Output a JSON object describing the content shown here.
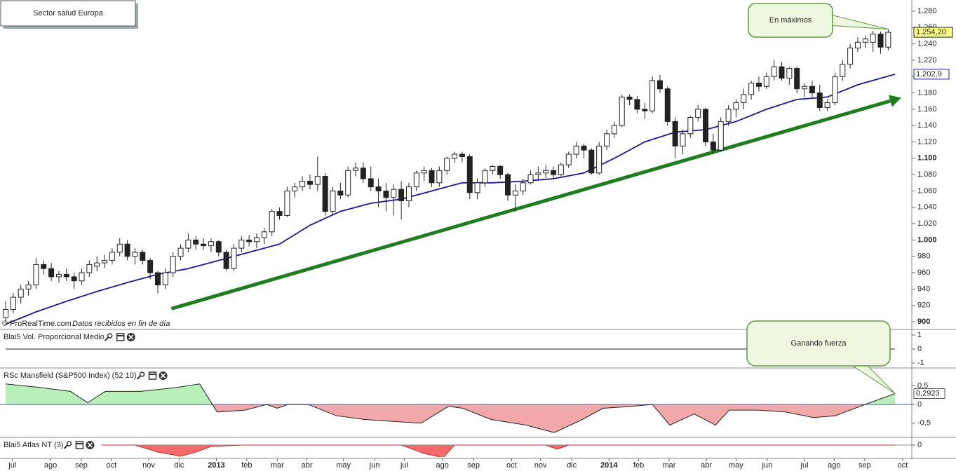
{
  "chart_data": [
    {
      "type": "candlestick",
      "title": "Sector salud Europa",
      "xlim": [
        -0.74,
        119.1
      ],
      "ylim": [
        892.3,
        1293.7
      ],
      "yticks": [
        900,
        920,
        940,
        960,
        980,
        {
          "value": 1000,
          "label": "1.000"
        },
        {
          "value": 1020,
          "label": "1.020"
        },
        {
          "value": 1040,
          "label": "1.040"
        },
        {
          "value": 1060,
          "label": "1.060"
        },
        {
          "value": 1080,
          "label": "1.080"
        },
        {
          "value": 1100,
          "label": "1.100"
        },
        {
          "value": 1120,
          "label": "1.120"
        },
        {
          "value": 1140,
          "label": "1.140"
        },
        {
          "value": 1160,
          "label": "1.160"
        },
        {
          "value": 1180,
          "label": "1.180"
        },
        {
          "value": 1200,
          "label": "1.200"
        },
        {
          "value": 1220,
          "label": "1.220"
        },
        {
          "value": 1240,
          "label": "1.240"
        },
        {
          "value": 1260,
          "label": "1.260"
        },
        {
          "value": 1280,
          "label": "1.280"
        }
      ],
      "candle_colors": {
        "up": "#ffffff",
        "down": "#222222"
      },
      "candles": [
        [
          905,
          925,
          900,
          915
        ],
        [
          915,
          935,
          910,
          930
        ],
        [
          930,
          945,
          922,
          940
        ],
        [
          940,
          950,
          932,
          945
        ],
        [
          945,
          978,
          940,
          970
        ],
        [
          970,
          975,
          958,
          965
        ],
        [
          965,
          972,
          950,
          955
        ],
        [
          955,
          962,
          948,
          958
        ],
        [
          958,
          965,
          950,
          955
        ],
        [
          955,
          960,
          940,
          950
        ],
        [
          950,
          965,
          945,
          960
        ],
        [
          960,
          975,
          955,
          970
        ],
        [
          968,
          980,
          962,
          972
        ],
        [
          972,
          982,
          966,
          975
        ],
        [
          975,
          990,
          970,
          985
        ],
        [
          985,
          1002,
          980,
          995
        ],
        [
          995,
          1000,
          975,
          980
        ],
        [
          980,
          990,
          970,
          985
        ],
        [
          985,
          988,
          970,
          975
        ],
        [
          975,
          978,
          952,
          960
        ],
        [
          960,
          962,
          935,
          945
        ],
        [
          945,
          965,
          940,
          960
        ],
        [
          960,
          985,
          955,
          980
        ],
        [
          980,
          995,
          975,
          990
        ],
        [
          990,
          1008,
          985,
          1000
        ],
        [
          1000,
          1005,
          988,
          995
        ],
        [
          995,
          1002,
          988,
          993
        ],
        [
          993,
          1002,
          985,
          998
        ],
        [
          998,
          1000,
          980,
          985
        ],
        [
          985,
          988,
          962,
          965
        ],
        [
          965,
          995,
          962,
          990
        ],
        [
          990,
          1005,
          985,
          1000
        ],
        [
          1000,
          1006,
          992,
          998
        ],
        [
          998,
          1008,
          990,
          1003
        ],
        [
          1003,
          1015,
          995,
          1010
        ],
        [
          1010,
          1038,
          1005,
          1035
        ],
        [
          1035,
          1040,
          1025,
          1030
        ],
        [
          1030,
          1065,
          1028,
          1060
        ],
        [
          1060,
          1070,
          1052,
          1065
        ],
        [
          1065,
          1078,
          1060,
          1072
        ],
        [
          1072,
          1080,
          1062,
          1068
        ],
        [
          1068,
          1102,
          1060,
          1078
        ],
        [
          1078,
          1082,
          1030,
          1035
        ],
        [
          1035,
          1065,
          1030,
          1060
        ],
        [
          1060,
          1070,
          1050,
          1055
        ],
        [
          1055,
          1090,
          1052,
          1085
        ],
        [
          1085,
          1095,
          1078,
          1088
        ],
        [
          1088,
          1095,
          1070,
          1075
        ],
        [
          1075,
          1090,
          1060,
          1065
        ],
        [
          1065,
          1075,
          1040,
          1060
        ],
        [
          1060,
          1070,
          1035,
          1052
        ],
        [
          1052,
          1068,
          1030,
          1062
        ],
        [
          1062,
          1072,
          1025,
          1048
        ],
        [
          1048,
          1070,
          1040,
          1065
        ],
        [
          1065,
          1085,
          1060,
          1082
        ],
        [
          1082,
          1090,
          1072,
          1085
        ],
        [
          1085,
          1088,
          1065,
          1070
        ],
        [
          1070,
          1090,
          1065,
          1085
        ],
        [
          1085,
          1102,
          1080,
          1100
        ],
        [
          1100,
          1108,
          1095,
          1105
        ],
        [
          1105,
          1108,
          1095,
          1102
        ],
        [
          1102,
          1105,
          1050,
          1058
        ],
        [
          1058,
          1075,
          1050,
          1070
        ],
        [
          1070,
          1088,
          1065,
          1085
        ],
        [
          1085,
          1092,
          1080,
          1090
        ],
        [
          1090,
          1092,
          1075,
          1080
        ],
        [
          1080,
          1082,
          1048,
          1055
        ],
        [
          1055,
          1068,
          1035,
          1060
        ],
        [
          1060,
          1075,
          1055,
          1070
        ],
        [
          1070,
          1085,
          1068,
          1080
        ],
        [
          1080,
          1090,
          1074,
          1082
        ],
        [
          1082,
          1092,
          1076,
          1085
        ],
        [
          1085,
          1090,
          1075,
          1080
        ],
        [
          1080,
          1095,
          1078,
          1092
        ],
        [
          1092,
          1108,
          1088,
          1105
        ],
        [
          1105,
          1120,
          1100,
          1115
        ],
        [
          1115,
          1118,
          1100,
          1110
        ],
        [
          1110,
          1112,
          1080,
          1082
        ],
        [
          1082,
          1120,
          1080,
          1115
        ],
        [
          1115,
          1135,
          1110,
          1130
        ],
        [
          1130,
          1145,
          1125,
          1140
        ],
        [
          1140,
          1178,
          1138,
          1175
        ],
        [
          1175,
          1178,
          1165,
          1172
        ],
        [
          1172,
          1176,
          1155,
          1160
        ],
        [
          1160,
          1168,
          1148,
          1158
        ],
        [
          1158,
          1200,
          1155,
          1195
        ],
        [
          1195,
          1202,
          1180,
          1185
        ],
        [
          1185,
          1188,
          1140,
          1145
        ],
        [
          1145,
          1150,
          1100,
          1115
        ],
        [
          1115,
          1135,
          1105,
          1130
        ],
        [
          1130,
          1152,
          1125,
          1150
        ],
        [
          1150,
          1165,
          1145,
          1160
        ],
        [
          1160,
          1162,
          1115,
          1120
        ],
        [
          1120,
          1130,
          1105,
          1110
        ],
        [
          1110,
          1150,
          1108,
          1145
        ],
        [
          1145,
          1165,
          1140,
          1160
        ],
        [
          1160,
          1172,
          1150,
          1168
        ],
        [
          1168,
          1185,
          1160,
          1178
        ],
        [
          1178,
          1195,
          1172,
          1192
        ],
        [
          1192,
          1200,
          1182,
          1188
        ],
        [
          1188,
          1205,
          1185,
          1200
        ],
        [
          1200,
          1220,
          1195,
          1212
        ],
        [
          1212,
          1218,
          1195,
          1198
        ],
        [
          1198,
          1212,
          1190,
          1210
        ],
        [
          1210,
          1212,
          1180,
          1185
        ],
        [
          1185,
          1192,
          1175,
          1188
        ],
        [
          1188,
          1195,
          1175,
          1180
        ],
        [
          1180,
          1190,
          1158,
          1162
        ],
        [
          1162,
          1172,
          1158,
          1168
        ],
        [
          1168,
          1205,
          1165,
          1200
        ],
        [
          1200,
          1220,
          1195,
          1215
        ],
        [
          1215,
          1240,
          1210,
          1235
        ],
        [
          1235,
          1248,
          1230,
          1242
        ],
        [
          1242,
          1250,
          1235,
          1246
        ],
        [
          1242,
          1256,
          1230,
          1252
        ],
        [
          1252,
          1255,
          1228,
          1236
        ],
        [
          1236,
          1258,
          1232,
          1254.2
        ]
      ],
      "moving_average": {
        "color": "#1a1a8c",
        "x": [
          0,
          4,
          8,
          12,
          16,
          20,
          24,
          28,
          32,
          36,
          40,
          44,
          48,
          52,
          56,
          60,
          64,
          68,
          72,
          76,
          80,
          84,
          88,
          92,
          96,
          100,
          104,
          108,
          112,
          116.9
        ],
        "values": [
          897,
          912,
          925,
          937,
          948,
          958,
          965,
          975,
          985,
          995,
          1018,
          1035,
          1045,
          1050,
          1060,
          1070,
          1070,
          1072,
          1075,
          1082,
          1100,
          1120,
          1132,
          1135,
          1145,
          1160,
          1172,
          1175,
          1190,
          1202.9
        ]
      },
      "trendline": {
        "color": "#1e7d1e",
        "x": [
          21.8,
          117.7
        ],
        "values": [
          916,
          1174
        ]
      },
      "last_price": {
        "value": 1254.2,
        "label": "1.254,20"
      },
      "ma_last": {
        "value": 1202.9,
        "label": "1.202,9"
      },
      "annotation": "En máximos",
      "credit": "© ProRealTime.com",
      "credit_note": "Datos recibidos en fin de día"
    },
    {
      "type": "line",
      "title": "Blai5 Vol. Proporcional Medio",
      "xlim": [
        -0.74,
        119.1
      ],
      "ylim": [
        -1.25,
        1.25
      ],
      "yticks": [
        1,
        0,
        -1
      ],
      "series": [
        {
          "color": "#222222",
          "x": [
            0,
            116.9
          ],
          "values": [
            0,
            0
          ]
        }
      ]
    },
    {
      "type": "area",
      "title": "RSc Mansfield (S&P500 Index) (52 10)",
      "xlim": [
        -0.74,
        119.1
      ],
      "ylim": [
        -0.84,
        0.92
      ],
      "yticks": [
        {
          "value": 0.5,
          "label": "0,5"
        },
        0,
        {
          "value": -0.5,
          "label": "-0,5"
        }
      ],
      "fill_above": "#b9f0b9",
      "fill_below": "#f2a8a8",
      "zero_color": "#4a5fa8",
      "series": [
        {
          "color": "#222222",
          "x": [
            0,
            4.8,
            8.5,
            10.8,
            13.1,
            17.7,
            22.3,
            25.5,
            27.8,
            31.5,
            34.3,
            35.7,
            37.1,
            39.8,
            43.5,
            47.2,
            50.9,
            54.6,
            58.2,
            60.1,
            63.8,
            68.4,
            72.1,
            75.8,
            78.5,
            82.2,
            85,
            87.3,
            90.5,
            93.3,
            95.1,
            98.8,
            102.5,
            106.2,
            109,
            113.6,
            116.9
          ],
          "values": [
            0.55,
            0.45,
            0.35,
            0.05,
            0.35,
            0.35,
            0.45,
            0.55,
            -0.2,
            -0.15,
            0,
            -0.1,
            0,
            0,
            -0.3,
            -0.4,
            -0.45,
            -0.5,
            -0.05,
            -0.1,
            -0.4,
            -0.55,
            -0.75,
            -0.4,
            -0.1,
            -0.05,
            0,
            -0.55,
            -0.25,
            -0.55,
            -0.15,
            -0.15,
            -0.2,
            -0.35,
            -0.3,
            0.05,
            0.2923
          ]
        }
      ],
      "last_value": {
        "value": 0.2923,
        "label": "0,2923"
      },
      "annotation": "Ganando fuerza"
    },
    {
      "type": "area",
      "title": "Blai5 Atlas NT (3)",
      "xlim": [
        -0.74,
        119.1
      ],
      "ylim": [
        -0.85,
        0.4
      ],
      "yticks": [
        0
      ],
      "fill_above": "#b9f0b9",
      "fill_below": "#f26a6a",
      "zero_color": "#888888",
      "series": [
        {
          "color": "#c03030",
          "x": [
            0,
            17,
            20,
            23,
            25,
            27,
            31,
            52,
            55,
            57.5,
            59,
            71,
            72.5,
            74,
            116.9
          ],
          "values": [
            0,
            0,
            -0.5,
            -0.8,
            -0.5,
            -0.1,
            0,
            0,
            -0.6,
            -0.9,
            0,
            0,
            -0.3,
            0,
            0
          ]
        }
      ],
      "xticks": [
        {
          "value": 0.9,
          "label": "jul"
        },
        {
          "value": 5.9,
          "label": "ago"
        },
        {
          "value": 9.95,
          "label": "sep"
        },
        {
          "value": 13.9,
          "label": "oct"
        },
        {
          "value": 18.8,
          "label": "nov"
        },
        {
          "value": 22.8,
          "label": "dic"
        },
        {
          "value": 27.7,
          "label": "2013"
        },
        {
          "value": 31.7,
          "label": "feb"
        },
        {
          "value": 35.7,
          "label": "mar"
        },
        {
          "value": 39.6,
          "label": "abr"
        },
        {
          "value": 44.4,
          "label": "may"
        },
        {
          "value": 48.5,
          "label": "jun"
        },
        {
          "value": 52.4,
          "label": "jul"
        },
        {
          "value": 57.4,
          "label": "ago"
        },
        {
          "value": 61.5,
          "label": "sep"
        },
        {
          "value": 66.5,
          "label": "oct"
        },
        {
          "value": 70.3,
          "label": "nov"
        },
        {
          "value": 74.4,
          "label": "dic"
        },
        {
          "value": 79.3,
          "label": "2014"
        },
        {
          "value": 83.2,
          "label": "feb"
        },
        {
          "value": 87.2,
          "label": "mar"
        },
        {
          "value": 92.1,
          "label": "abr"
        },
        {
          "value": 96.0,
          "label": "may"
        },
        {
          "value": 100.1,
          "label": "jun"
        },
        {
          "value": 105.0,
          "label": "jul"
        },
        {
          "value": 108.9,
          "label": "ago"
        },
        {
          "value": 112.9,
          "label": "sep"
        },
        {
          "value": 117.9,
          "label": "oct"
        }
      ]
    }
  ]
}
